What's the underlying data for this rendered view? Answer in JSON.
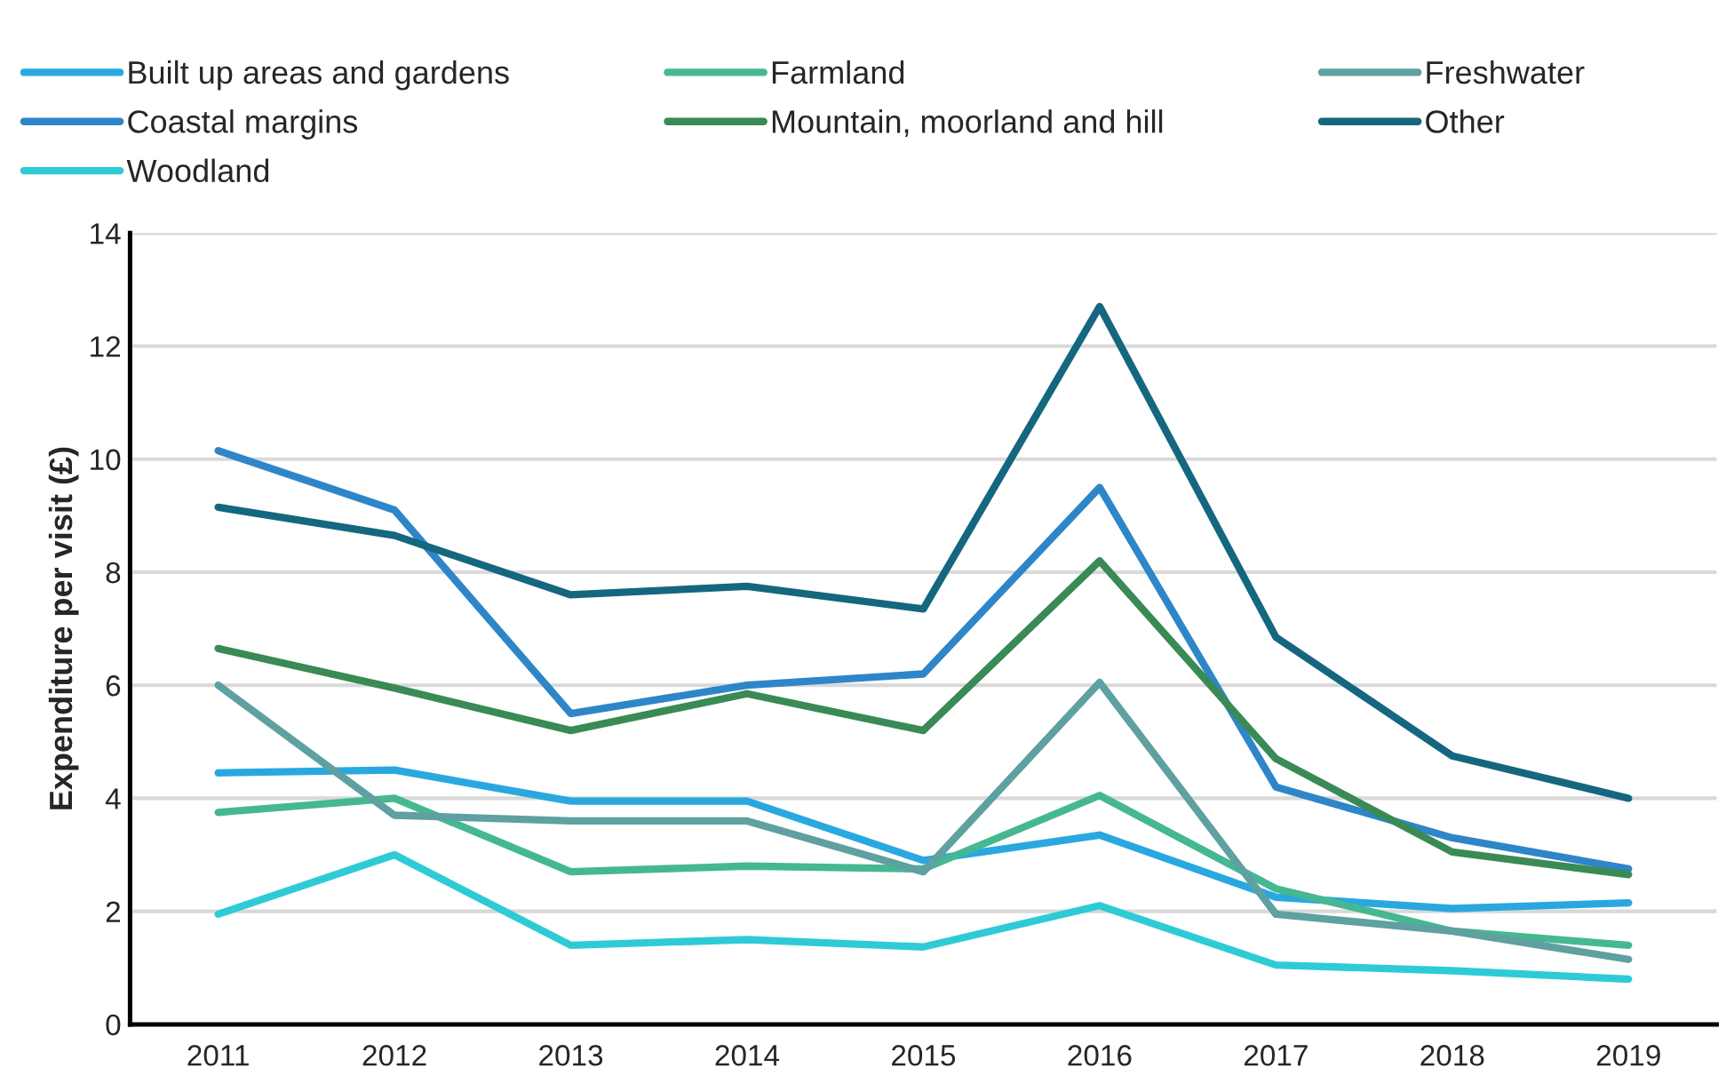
{
  "chart_data": {
    "type": "line",
    "ylabel": "Expenditure per visit (£)",
    "categories": [
      "2011",
      "2012",
      "2013",
      "2014",
      "2015",
      "2016",
      "2017",
      "2018",
      "2019"
    ],
    "series": [
      {
        "name": "Built up areas and gardens",
        "color": "#29a8e0",
        "values": [
          4.45,
          4.5,
          3.95,
          3.95,
          2.9,
          3.35,
          2.25,
          2.05,
          2.15
        ]
      },
      {
        "name": "Coastal margins",
        "color": "#2e86c8",
        "values": [
          10.15,
          9.1,
          5.5,
          6.0,
          6.2,
          9.5,
          4.2,
          3.3,
          2.75
        ]
      },
      {
        "name": "Woodland",
        "color": "#2ecbd6",
        "values": [
          1.95,
          3.0,
          1.4,
          1.5,
          1.37,
          2.1,
          1.05,
          0.95,
          0.8
        ]
      },
      {
        "name": "Farmland",
        "color": "#45b892",
        "values": [
          3.75,
          4.0,
          2.7,
          2.8,
          2.75,
          4.05,
          2.4,
          1.65,
          1.4
        ]
      },
      {
        "name": "Mountain, moorland and hill",
        "color": "#3a8a55",
        "values": [
          6.65,
          5.95,
          5.2,
          5.85,
          5.2,
          8.2,
          4.7,
          3.05,
          2.65
        ]
      },
      {
        "name": "Freshwater",
        "color": "#5fa0a0",
        "values": [
          6.0,
          3.7,
          3.6,
          3.6,
          2.7,
          6.05,
          1.95,
          1.65,
          1.15
        ]
      },
      {
        "name": "Other",
        "color": "#15677f",
        "values": [
          9.15,
          8.65,
          7.6,
          7.75,
          7.35,
          12.7,
          6.85,
          4.75,
          4.0
        ]
      }
    ],
    "ylim": [
      0,
      14
    ],
    "yticks": [
      0,
      2,
      4,
      6,
      8,
      10,
      12,
      14
    ],
    "grid": "y",
    "legend": "top",
    "marker": "none",
    "line_style": "solid"
  }
}
